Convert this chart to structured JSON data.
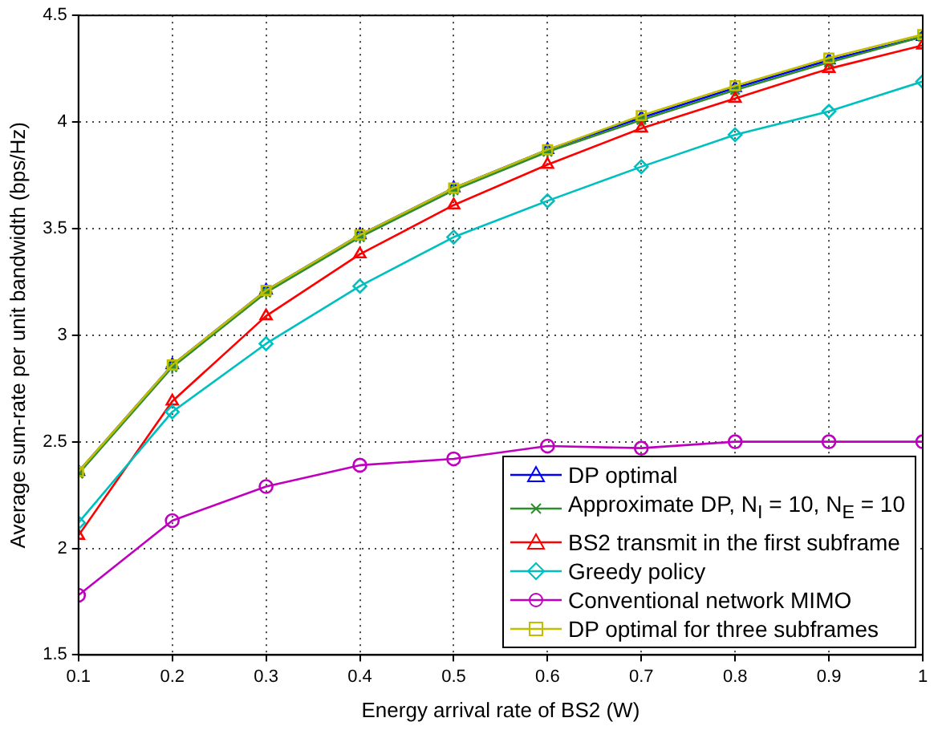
{
  "chart_data": {
    "type": "line",
    "xlabel": "Energy arrival rate of BS2 (W)",
    "ylabel": "Average sum-rate per unit bandwidth (bps/Hz)",
    "x": [
      0.1,
      0.2,
      0.3,
      0.4,
      0.5,
      0.6,
      0.7,
      0.8,
      0.9,
      1
    ],
    "xlim": [
      0.1,
      1
    ],
    "xticks": [
      0.1,
      0.2,
      0.3,
      0.4,
      0.5,
      0.6,
      0.7,
      0.8,
      0.9,
      1
    ],
    "ylim": [
      1.5,
      4.5
    ],
    "yticks": [
      1.5,
      2,
      2.5,
      3,
      3.5,
      4,
      4.5
    ],
    "grid": true,
    "legend": "bottom right",
    "line_style": "solid",
    "series": [
      {
        "name": "DP optimal",
        "color": "#0000ff",
        "marker": "triangle",
        "values": [
          2.36,
          2.86,
          3.21,
          3.47,
          3.69,
          3.87,
          4.02,
          4.16,
          4.29,
          4.4
        ]
      },
      {
        "name": "Approximate DP, N$_{I}$ = 10, N$_{E}$ = 10",
        "color": "#2e8b2e",
        "marker": "cross",
        "values": [
          2.35,
          2.85,
          3.2,
          3.46,
          3.68,
          3.86,
          4.01,
          4.15,
          4.28,
          4.4
        ]
      },
      {
        "name": "BS2 transmit in the first subframe",
        "color": "#ff0000",
        "marker": "triangle",
        "values": [
          2.06,
          2.69,
          3.09,
          3.38,
          3.61,
          3.8,
          3.97,
          4.11,
          4.25,
          4.36
        ]
      },
      {
        "name": "Greedy policy",
        "color": "#00bfbf",
        "marker": "diamond",
        "values": [
          2.12,
          2.64,
          2.96,
          3.23,
          3.46,
          3.63,
          3.79,
          3.94,
          4.05,
          4.19
        ]
      },
      {
        "name": "Conventional network MIMO",
        "color": "#bf00bf",
        "marker": "circle",
        "values": [
          1.78,
          2.13,
          2.29,
          2.39,
          2.42,
          2.48,
          2.47,
          2.5,
          2.5,
          2.5
        ]
      },
      {
        "name": "DP optimal for three subframes",
        "color": "#bfbf00",
        "marker": "square",
        "values": [
          2.36,
          2.86,
          3.21,
          3.47,
          3.69,
          3.87,
          4.03,
          4.17,
          4.3,
          4.41
        ]
      }
    ]
  }
}
